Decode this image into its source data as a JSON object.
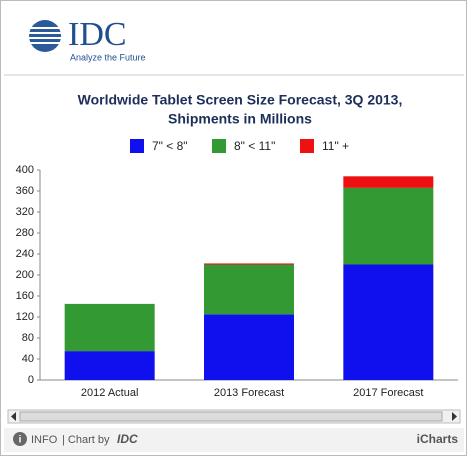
{
  "header": {
    "logo": "IDC",
    "tagline": "Analyze the Future"
  },
  "chart_data": {
    "type": "stacked_bar",
    "title": "Worldwide Tablet Screen Size Forecast, 3Q 2013,",
    "subtitle": "Shipments in Millions",
    "categories": [
      "2012 Actual",
      "2013 Forecast",
      "2017 Forecast"
    ],
    "series": [
      {
        "name": "7\" < 8\"",
        "color": "#1010ee",
        "values": [
          55,
          125,
          220
        ]
      },
      {
        "name": "8\" < 11\"",
        "color": "#339933",
        "values": [
          90,
          95,
          146
        ]
      },
      {
        "name": "11\" +",
        "color": "#ee1111",
        "values": [
          0,
          2,
          22
        ]
      }
    ],
    "ylim": [
      0,
      400
    ],
    "yticks": [
      0,
      40,
      80,
      120,
      160,
      200,
      240,
      280,
      320,
      360,
      400
    ],
    "legend": "top"
  },
  "footer": {
    "info": "INFO",
    "chart_by": "| Chart by",
    "brand": "IDC",
    "icharts": "iCharts"
  }
}
